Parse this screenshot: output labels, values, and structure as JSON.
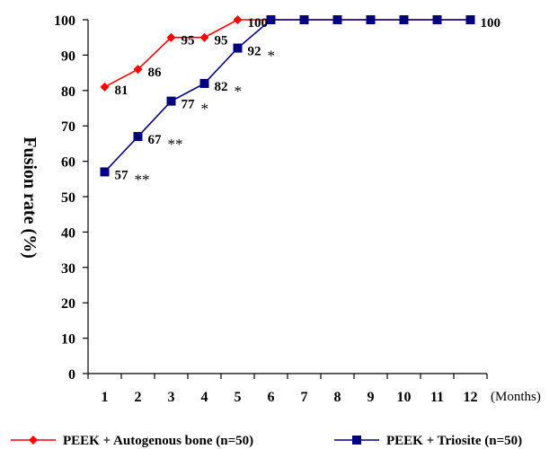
{
  "chart_data": {
    "type": "line",
    "x": [
      1,
      2,
      3,
      4,
      5,
      6,
      7,
      8,
      9,
      10,
      11,
      12
    ],
    "xunit": "(Months)",
    "ylabel": "Fusion rate (%)",
    "ylim": [
      0,
      100
    ],
    "yticks": [
      "0",
      "10",
      "20",
      "30",
      "40",
      "50",
      "60",
      "70",
      "80",
      "90",
      "100"
    ],
    "xticks": [
      "1",
      "2",
      "3",
      "4",
      "5",
      "6",
      "7",
      "8",
      "9",
      "10",
      "11",
      "12"
    ],
    "grid": false,
    "legend_position": "bottom",
    "series": [
      {
        "name": "PEEK + Autogenous bone (n=50)",
        "color": "#ff0000",
        "marker": "diamond",
        "x": [
          1,
          2,
          3,
          4,
          5,
          6,
          7,
          8,
          9,
          10,
          11,
          12
        ],
        "values": [
          81,
          86,
          95,
          95,
          100,
          100,
          100,
          100,
          100,
          100,
          100,
          100
        ],
        "labels": [
          "81",
          "86",
          "95",
          "95",
          "100",
          "",
          "",
          "",
          "",
          "",
          "",
          ""
        ]
      },
      {
        "name": "PEEK + Triosite (n=50)",
        "color": "#000080",
        "marker": "square",
        "x": [
          1,
          2,
          3,
          4,
          5,
          6,
          7,
          8,
          9,
          10,
          11,
          12
        ],
        "values": [
          57,
          67,
          77,
          82,
          92,
          100,
          100,
          100,
          100,
          100,
          100,
          100
        ],
        "labels": [
          "57",
          "67",
          "77",
          "82",
          "92",
          "",
          "",
          "",
          "",
          "",
          "",
          "100"
        ],
        "significance": [
          "**",
          "**",
          "*",
          "*",
          "*",
          "",
          "",
          "",
          "",
          "",
          "",
          ""
        ]
      }
    ]
  }
}
